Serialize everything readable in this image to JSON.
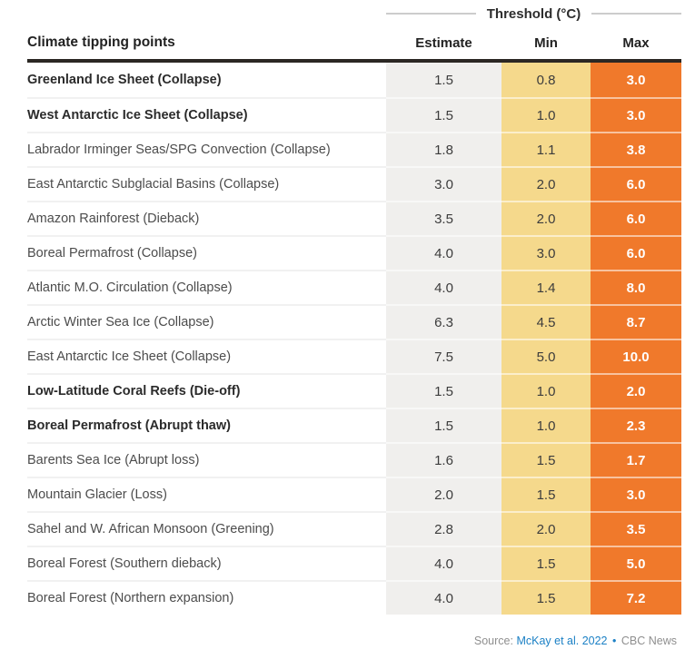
{
  "page": {
    "threshold_title": "Threshold (°C)",
    "headers": {
      "label": "Climate tipping points",
      "estimate": "Estimate",
      "min": "Min",
      "max": "Max"
    },
    "footer": {
      "source_label": "Source:",
      "source_link": "McKay et al. 2022",
      "separator": "•",
      "credit": "CBC News"
    }
  },
  "colors": {
    "estimate_bg": "#f0efed",
    "min_bg": "#f5d98c",
    "max_bg": "#f0792b",
    "header_rule": "#2b2723",
    "threshold_line": "#cccccc",
    "link_blue": "#1b80c5"
  },
  "chart_data": {
    "type": "table",
    "title": "Threshold (°C)",
    "columns": [
      "Climate tipping points",
      "Estimate",
      "Min",
      "Max"
    ],
    "rows": [
      {
        "label": "Greenland Ice Sheet (Collapse)",
        "bold": true,
        "estimate": "1.5",
        "min": "0.8",
        "max": "3.0"
      },
      {
        "label": "West Antarctic Ice Sheet (Collapse)",
        "bold": true,
        "estimate": "1.5",
        "min": "1.0",
        "max": "3.0"
      },
      {
        "label": "Labrador Irminger Seas/SPG Convection (Collapse)",
        "bold": false,
        "estimate": "1.8",
        "min": "1.1",
        "max": "3.8"
      },
      {
        "label": "East Antarctic Subglacial Basins (Collapse)",
        "bold": false,
        "estimate": "3.0",
        "min": "2.0",
        "max": "6.0"
      },
      {
        "label": "Amazon Rainforest (Dieback)",
        "bold": false,
        "estimate": "3.5",
        "min": "2.0",
        "max": "6.0"
      },
      {
        "label": "Boreal Permafrost (Collapse)",
        "bold": false,
        "estimate": "4.0",
        "min": "3.0",
        "max": "6.0"
      },
      {
        "label": "Atlantic M.O. Circulation (Collapse)",
        "bold": false,
        "estimate": "4.0",
        "min": "1.4",
        "max": "8.0"
      },
      {
        "label": "Arctic Winter Sea Ice (Collapse)",
        "bold": false,
        "estimate": "6.3",
        "min": "4.5",
        "max": "8.7"
      },
      {
        "label": "East Antarctic Ice Sheet (Collapse)",
        "bold": false,
        "estimate": "7.5",
        "min": "5.0",
        "max": "10.0"
      },
      {
        "label": "Low-Latitude Coral Reefs (Die-off)",
        "bold": true,
        "estimate": "1.5",
        "min": "1.0",
        "max": "2.0"
      },
      {
        "label": "Boreal Permafrost (Abrupt thaw)",
        "bold": true,
        "estimate": "1.5",
        "min": "1.0",
        "max": "2.3"
      },
      {
        "label": "Barents Sea Ice (Abrupt loss)",
        "bold": false,
        "estimate": "1.6",
        "min": "1.5",
        "max": "1.7"
      },
      {
        "label": "Mountain Glacier (Loss)",
        "bold": false,
        "estimate": "2.0",
        "min": "1.5",
        "max": "3.0"
      },
      {
        "label": "Sahel and W. African Monsoon (Greening)",
        "bold": false,
        "estimate": "2.8",
        "min": "2.0",
        "max": "3.5"
      },
      {
        "label": "Boreal Forest (Southern dieback)",
        "bold": false,
        "estimate": "4.0",
        "min": "1.5",
        "max": "5.0"
      },
      {
        "label": "Boreal Forest (Northern expansion)",
        "bold": false,
        "estimate": "4.0",
        "min": "1.5",
        "max": "7.2"
      }
    ]
  }
}
